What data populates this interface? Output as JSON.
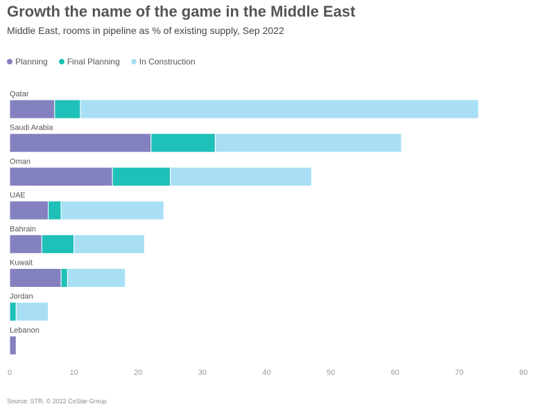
{
  "chart_data": {
    "type": "bar",
    "orientation": "horizontal",
    "stacked": true,
    "title": "Growth the name of the game in the Middle East",
    "subtitle": "Middle East, rooms in pipeline as % of existing supply, Sep 2022",
    "categories": [
      "Qatar",
      "Saudi Arabia",
      "Oman",
      "UAE",
      "Bahrain",
      "Kuwait",
      "Jordan",
      "Lebanon"
    ],
    "series": [
      {
        "name": "Planning",
        "color": "#8481c0",
        "values": [
          7,
          22,
          16,
          6,
          5,
          8,
          0,
          1
        ]
      },
      {
        "name": "Final Planning",
        "color": "#1fc0b8",
        "values": [
          4,
          10,
          9,
          2,
          5,
          1,
          1,
          0
        ]
      },
      {
        "name": "In Construction",
        "color": "#a8dff5",
        "values": [
          62,
          29,
          22,
          16,
          11,
          9,
          5,
          0
        ]
      }
    ],
    "xlim": [
      0,
      80
    ],
    "xticks": [
      "0",
      "10",
      "20",
      "30",
      "40",
      "50",
      "60",
      "70",
      "80"
    ],
    "grid": false,
    "legend_position": "top-left",
    "source": "Source: STR. © 2022 CoStar Group"
  }
}
